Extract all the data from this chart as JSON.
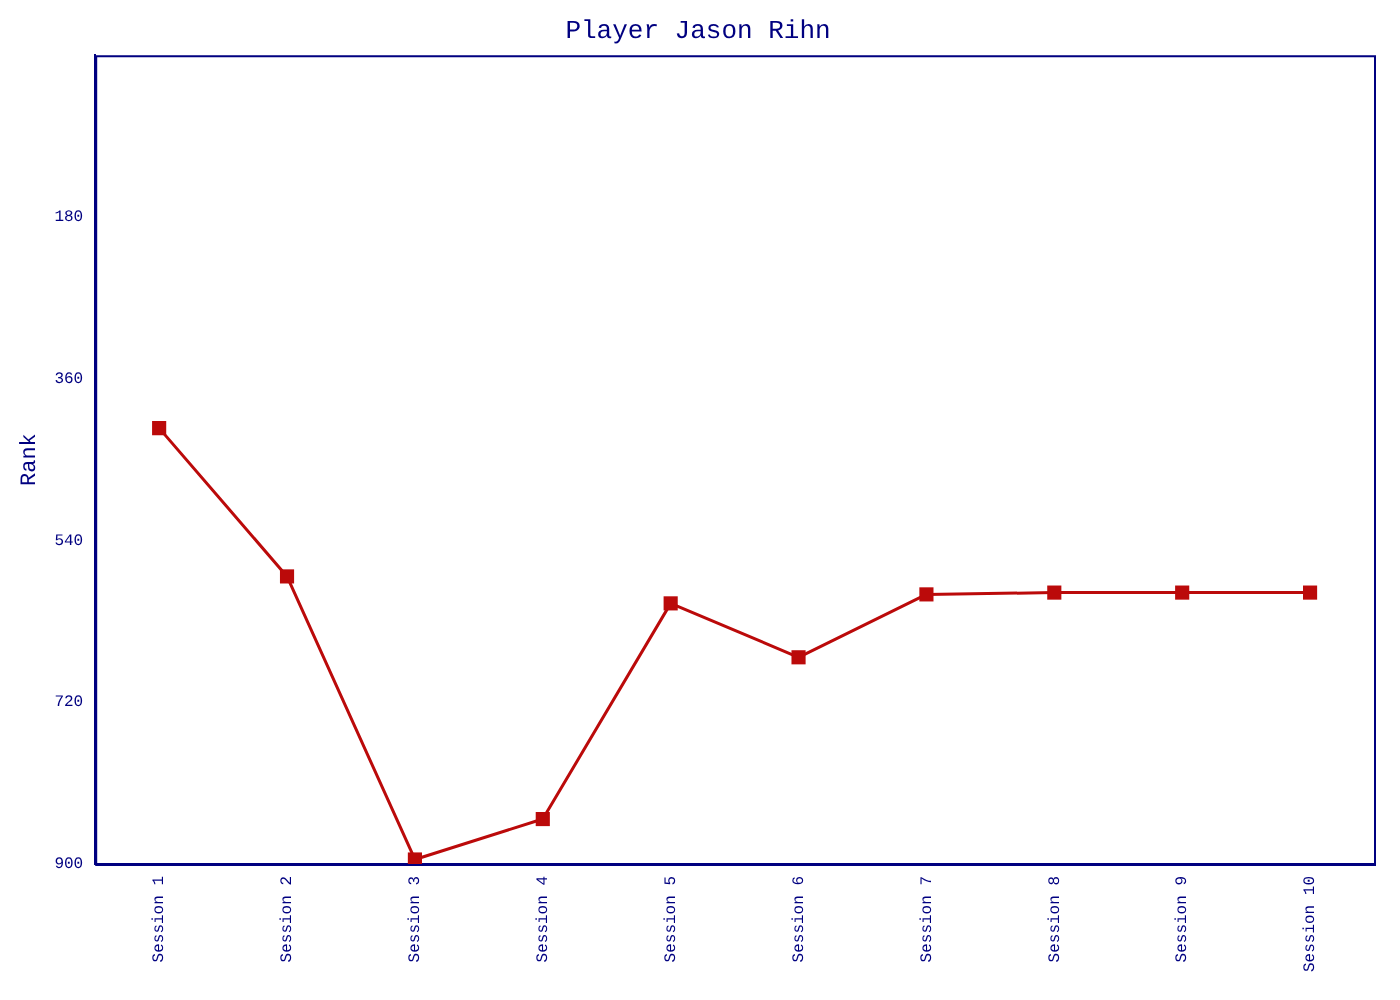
{
  "chart_data": {
    "type": "line",
    "title": "Player Jason Rihn",
    "ylabel": "Rank",
    "categories": [
      "Session 1",
      "Session 2",
      "Session 3",
      "Session 4",
      "Session 5",
      "Session 6",
      "Session 7",
      "Session 8",
      "Session 9",
      "Session 10"
    ],
    "series": [
      {
        "color": "#bb0a0a",
        "values": [
          415,
          580,
          895,
          850,
          610,
          670,
          600,
          598,
          598,
          598
        ]
      }
    ],
    "ylim": [
      900,
      0
    ],
    "yticks": [
      180,
      360,
      540,
      720,
      900
    ],
    "grid": false,
    "legend": false,
    "marker": "square",
    "line_style": "solid"
  }
}
